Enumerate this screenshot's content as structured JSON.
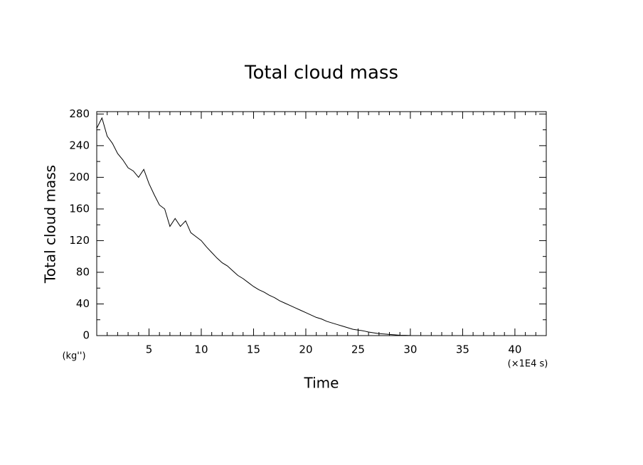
{
  "chart_data": {
    "type": "line",
    "title": "Total cloud mass",
    "xlabel": "Time",
    "ylabel": "Total cloud mass",
    "y_unit": "(kg'')",
    "x_unit": "(×1E4 s)",
    "x": [
      0,
      0.5,
      1,
      1.5,
      2,
      2.5,
      3,
      3.5,
      4,
      4.5,
      5,
      5.5,
      6,
      6.5,
      7,
      7.5,
      8,
      8.5,
      9,
      9.5,
      10,
      10.5,
      11,
      11.5,
      12,
      12.5,
      13,
      13.5,
      14,
      14.5,
      15,
      15.5,
      16,
      16.5,
      17,
      17.5,
      18,
      18.5,
      19,
      19.5,
      20,
      20.5,
      21,
      21.5,
      22,
      22.5,
      23,
      23.5,
      24,
      24.5,
      25,
      25.5,
      26,
      26.5,
      27,
      27.5,
      28,
      28.5,
      29,
      29.5,
      30
    ],
    "series": [
      {
        "name": "Total cloud mass",
        "color": "#000000",
        "values": [
          262,
          275,
          252,
          243,
          230,
          222,
          212,
          208,
          200,
          210,
          192,
          178,
          165,
          160,
          138,
          148,
          138,
          145,
          130,
          125,
          120,
          112,
          105,
          98,
          92,
          88,
          82,
          76,
          72,
          67,
          62,
          58,
          55,
          51,
          48,
          44,
          41,
          38,
          35,
          32,
          29,
          26,
          23,
          21,
          18,
          16,
          14,
          12,
          10,
          8,
          7,
          6,
          4.5,
          3.5,
          2.5,
          2,
          1.5,
          1,
          0.5,
          0.3,
          0.1
        ]
      }
    ],
    "xlim": [
      0,
      43
    ],
    "ylim": [
      0,
      283
    ],
    "xticks": [
      5,
      10,
      15,
      20,
      25,
      30,
      35,
      40
    ],
    "yticks": [
      0,
      40,
      80,
      120,
      160,
      200,
      240,
      280
    ],
    "xminorticks": [
      1,
      2,
      3,
      4,
      6,
      7,
      8,
      9,
      11,
      12,
      13,
      14,
      16,
      17,
      18,
      19,
      21,
      22,
      23,
      24,
      26,
      27,
      28,
      29,
      31,
      32,
      33,
      34,
      36,
      37,
      38,
      39,
      41,
      42
    ],
    "yminorticks": [
      20,
      60,
      100,
      140,
      180,
      220,
      260
    ],
    "grid": false
  }
}
